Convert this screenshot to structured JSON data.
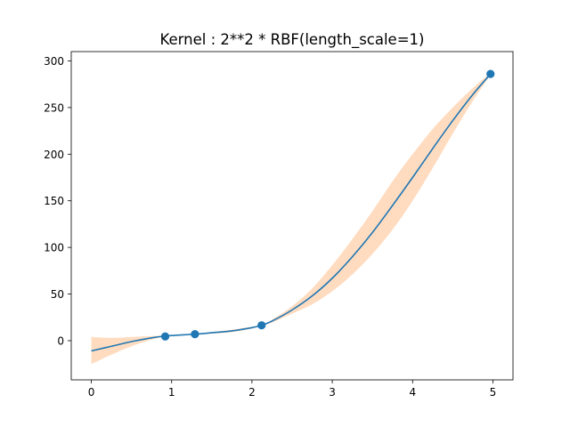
{
  "chart_data": {
    "type": "line",
    "title": "Kernel : 2**2 * RBF(length_scale=1)",
    "xlabel": "",
    "ylabel": "",
    "xlim": [
      -0.25,
      5.25
    ],
    "ylim": [
      -42,
      310
    ],
    "xticks": [
      0,
      1,
      2,
      3,
      4,
      5
    ],
    "yticks": [
      0,
      50,
      100,
      150,
      200,
      250,
      300
    ],
    "grid": false,
    "legend": "none",
    "colors": {
      "mean": "#1f77b4",
      "band": "#ffdcc0",
      "points": "#1f77b4"
    },
    "series": [
      {
        "kind": "line",
        "x": [
          0,
          0.25,
          0.5,
          0.75,
          0.92,
          1.0,
          1.29,
          1.5,
          1.75,
          2.0,
          2.12,
          2.25,
          2.5,
          2.75,
          3.0,
          3.25,
          3.5,
          3.75,
          4.0,
          4.25,
          4.5,
          4.75,
          4.97
        ],
        "values": [
          -11,
          -6,
          -1,
          3,
          5,
          5.5,
          7,
          8.5,
          10.5,
          14,
          16.5,
          21,
          33,
          48,
          67,
          90,
          116,
          145,
          175,
          206,
          236,
          264,
          286
        ]
      },
      {
        "kind": "band",
        "x": [
          0,
          0.25,
          0.5,
          0.75,
          0.92,
          1.0,
          1.29,
          1.5,
          1.75,
          2.0,
          2.12,
          2.25,
          2.5,
          2.75,
          3.0,
          3.25,
          3.5,
          3.75,
          4.0,
          4.25,
          4.5,
          4.75,
          4.97
        ],
        "lower": [
          -25,
          -15,
          -6,
          1,
          4.5,
          5,
          6.7,
          7.6,
          9.2,
          13,
          16.2,
          19.5,
          29,
          39,
          53,
          71,
          93,
          119,
          150,
          185,
          222,
          257,
          285
        ],
        "upper": [
          4,
          3,
          4,
          5,
          5.5,
          6,
          7.3,
          9.4,
          11.8,
          15,
          16.8,
          22.5,
          37,
          56,
          81,
          109,
          139,
          171,
          200,
          227,
          250,
          271,
          287
        ]
      },
      {
        "kind": "scatter",
        "x": [
          0.92,
          1.29,
          2.12,
          4.97
        ],
        "values": [
          4.5,
          7,
          16.5,
          286
        ]
      }
    ]
  }
}
